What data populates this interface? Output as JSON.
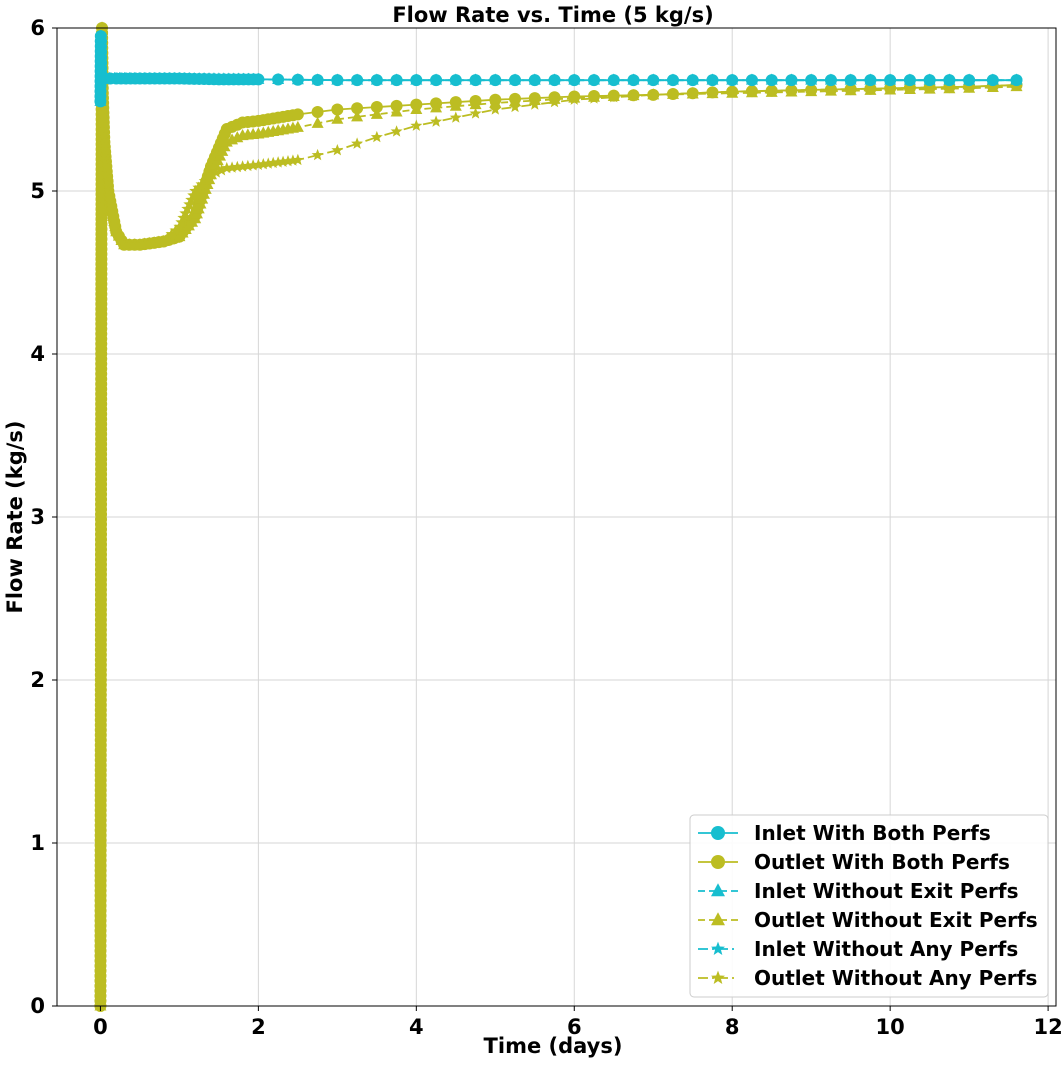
{
  "chart_data": {
    "type": "line",
    "title": "Flow Rate vs. Time (5 kg/s)",
    "xlabel": "Time (days)",
    "ylabel": "Flow Rate (kg/s)",
    "xlim": [
      -0.55,
      12.1
    ],
    "ylim": [
      0,
      6
    ],
    "xticks": [
      0,
      2,
      4,
      6,
      8,
      10,
      12
    ],
    "yticks": [
      0,
      1,
      2,
      3,
      4,
      5,
      6
    ],
    "grid": true,
    "legend_position": "lower-right",
    "colors": {
      "inlet": "#17BECF",
      "outlet": "#BCBD22"
    },
    "series": [
      {
        "name": "Inlet With Both Perfs",
        "color": "#17BECF",
        "linestyle": "solid",
        "marker": "circle",
        "points": [
          [
            0,
            5.55
          ],
          [
            0.005,
            5.95
          ],
          [
            0.01,
            5.72
          ],
          [
            0.02,
            5.69
          ],
          [
            0.05,
            5.69
          ],
          [
            0.2,
            5.69
          ],
          [
            0.5,
            5.69
          ],
          [
            1,
            5.69
          ],
          [
            1.5,
            5.685
          ],
          [
            2,
            5.685
          ],
          [
            3,
            5.68
          ],
          [
            4,
            5.68
          ],
          [
            5,
            5.68
          ],
          [
            6,
            5.68
          ],
          [
            7,
            5.68
          ],
          [
            8,
            5.68
          ],
          [
            9,
            5.68
          ],
          [
            10,
            5.68
          ],
          [
            11,
            5.68
          ],
          [
            11.6,
            5.68
          ]
        ]
      },
      {
        "name": "Outlet With Both Perfs",
        "color": "#BCBD22",
        "linestyle": "solid",
        "marker": "circle",
        "points": [
          [
            0,
            0.0
          ],
          [
            0.005,
            2.0
          ],
          [
            0.01,
            4.0
          ],
          [
            0.015,
            5.5
          ],
          [
            0.02,
            6.0
          ],
          [
            0.03,
            5.6
          ],
          [
            0.05,
            5.3
          ],
          [
            0.1,
            5.0
          ],
          [
            0.2,
            4.75
          ],
          [
            0.3,
            4.67
          ],
          [
            0.5,
            4.67
          ],
          [
            0.8,
            4.69
          ],
          [
            1.0,
            4.72
          ],
          [
            1.2,
            4.85
          ],
          [
            1.4,
            5.15
          ],
          [
            1.6,
            5.38
          ],
          [
            1.8,
            5.42
          ],
          [
            2.0,
            5.43
          ],
          [
            2.5,
            5.47
          ],
          [
            3.0,
            5.5
          ],
          [
            4.0,
            5.53
          ],
          [
            5.0,
            5.56
          ],
          [
            6.0,
            5.58
          ],
          [
            7.0,
            5.59
          ],
          [
            8.0,
            5.61
          ],
          [
            9.0,
            5.62
          ],
          [
            10.0,
            5.63
          ],
          [
            11.0,
            5.64
          ],
          [
            11.6,
            5.65
          ]
        ]
      },
      {
        "name": "Inlet Without Exit Perfs",
        "color": "#17BECF",
        "linestyle": "dashed",
        "marker": "triangle",
        "points": [
          [
            0,
            5.55
          ],
          [
            0.005,
            5.95
          ],
          [
            0.01,
            5.72
          ],
          [
            0.02,
            5.69
          ],
          [
            0.05,
            5.69
          ],
          [
            0.5,
            5.69
          ],
          [
            1,
            5.69
          ],
          [
            2,
            5.685
          ],
          [
            3,
            5.68
          ],
          [
            4,
            5.68
          ],
          [
            5,
            5.68
          ],
          [
            6,
            5.68
          ],
          [
            7,
            5.68
          ],
          [
            8,
            5.68
          ],
          [
            9,
            5.68
          ],
          [
            10,
            5.68
          ],
          [
            11,
            5.68
          ],
          [
            11.6,
            5.68
          ]
        ]
      },
      {
        "name": "Outlet Without Exit Perfs",
        "color": "#BCBD22",
        "linestyle": "dashed",
        "marker": "triangle",
        "points": [
          [
            0,
            0.0
          ],
          [
            0.005,
            2.0
          ],
          [
            0.01,
            4.0
          ],
          [
            0.015,
            5.5
          ],
          [
            0.02,
            6.0
          ],
          [
            0.03,
            5.6
          ],
          [
            0.05,
            5.3
          ],
          [
            0.1,
            5.0
          ],
          [
            0.2,
            4.75
          ],
          [
            0.3,
            4.67
          ],
          [
            0.5,
            4.67
          ],
          [
            0.8,
            4.69
          ],
          [
            1.0,
            4.72
          ],
          [
            1.2,
            4.83
          ],
          [
            1.4,
            5.1
          ],
          [
            1.6,
            5.3
          ],
          [
            1.8,
            5.34
          ],
          [
            2.0,
            5.35
          ],
          [
            2.5,
            5.39
          ],
          [
            3.0,
            5.44
          ],
          [
            4.0,
            5.5
          ],
          [
            5.0,
            5.54
          ],
          [
            6.0,
            5.57
          ],
          [
            7.0,
            5.59
          ],
          [
            8.0,
            5.6
          ],
          [
            9.0,
            5.61
          ],
          [
            10.0,
            5.62
          ],
          [
            11.0,
            5.63
          ],
          [
            11.6,
            5.64
          ]
        ]
      },
      {
        "name": "Inlet Without Any Perfs",
        "color": "#17BECF",
        "linestyle": "dashdot",
        "marker": "star",
        "points": [
          [
            0,
            5.55
          ],
          [
            0.005,
            5.95
          ],
          [
            0.01,
            5.72
          ],
          [
            0.02,
            5.69
          ],
          [
            0.05,
            5.69
          ],
          [
            0.5,
            5.69
          ],
          [
            1,
            5.69
          ],
          [
            2,
            5.685
          ],
          [
            3,
            5.68
          ],
          [
            4,
            5.68
          ],
          [
            5,
            5.68
          ],
          [
            6,
            5.68
          ],
          [
            7,
            5.68
          ],
          [
            8,
            5.68
          ],
          [
            9,
            5.68
          ],
          [
            10,
            5.68
          ],
          [
            11,
            5.68
          ],
          [
            11.6,
            5.68
          ]
        ]
      },
      {
        "name": "Outlet Without Any Perfs",
        "color": "#BCBD22",
        "linestyle": "dashdot",
        "marker": "star",
        "points": [
          [
            0,
            0.0
          ],
          [
            0.005,
            2.0
          ],
          [
            0.01,
            4.0
          ],
          [
            0.015,
            5.5
          ],
          [
            0.02,
            6.0
          ],
          [
            0.03,
            5.6
          ],
          [
            0.05,
            5.3
          ],
          [
            0.1,
            5.0
          ],
          [
            0.2,
            4.75
          ],
          [
            0.3,
            4.67
          ],
          [
            0.5,
            4.67
          ],
          [
            0.8,
            4.69
          ],
          [
            1.0,
            4.78
          ],
          [
            1.2,
            5.0
          ],
          [
            1.4,
            5.1
          ],
          [
            1.6,
            5.14
          ],
          [
            2.0,
            5.16
          ],
          [
            2.5,
            5.19
          ],
          [
            3.0,
            5.25
          ],
          [
            3.5,
            5.33
          ],
          [
            4.0,
            5.4
          ],
          [
            4.5,
            5.45
          ],
          [
            5.0,
            5.5
          ],
          [
            6.0,
            5.56
          ],
          [
            7.0,
            5.59
          ],
          [
            8.0,
            5.61
          ],
          [
            9.0,
            5.62
          ],
          [
            10.0,
            5.63
          ],
          [
            11.0,
            5.64
          ],
          [
            11.6,
            5.65
          ]
        ]
      }
    ]
  }
}
